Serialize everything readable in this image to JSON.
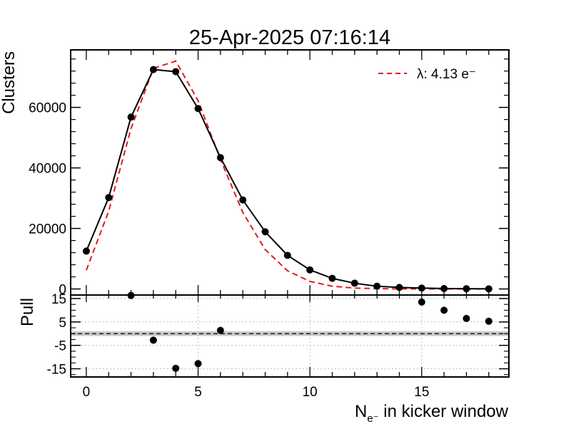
{
  "title": "25-Apr-2025 07:16:14",
  "chart_data": [
    {
      "type": "line",
      "panel": "main",
      "ylabel": "Clusters",
      "xlim": [
        -0.7,
        18.9
      ],
      "ylim": [
        -2000,
        79000
      ],
      "yticks": [
        0,
        20000,
        40000,
        60000
      ],
      "ytick_labels": [
        "0",
        "20000",
        "40000",
        "60000"
      ],
      "legend_position": "top-right",
      "series": [
        {
          "style": "data",
          "color": "#000000",
          "x": [
            0,
            1,
            2,
            3,
            4,
            5,
            6,
            7,
            8,
            9,
            10,
            11,
            12,
            13,
            14,
            15,
            16,
            17,
            18
          ],
          "values": [
            12500,
            30200,
            56800,
            72500,
            71800,
            59600,
            43400,
            29400,
            18900,
            11100,
            6300,
            3500,
            1900,
            900,
            500,
            300,
            150,
            80,
            40
          ]
        },
        {
          "name": "λ: 4.13 e⁻",
          "style": "fit",
          "color": "#e31a1c",
          "x": [
            0,
            1,
            2,
            3,
            4,
            5,
            6,
            7,
            8,
            9,
            10,
            11,
            12,
            13,
            14,
            15,
            16,
            17,
            18
          ],
          "values": [
            6200,
            25700,
            53000,
            72900,
            75300,
            62200,
            42800,
            25300,
            13000,
            6000,
            2500,
            900,
            300,
            100,
            30,
            10,
            3,
            1,
            0
          ]
        }
      ]
    },
    {
      "type": "scatter",
      "panel": "pull",
      "ylabel": "Pull",
      "xlabel": "N",
      "xlabel_sub": "e⁻",
      "xlabel_rest": " in kicker window",
      "xlim": [
        -0.7,
        18.9
      ],
      "ylim": [
        -18.5,
        16.5
      ],
      "yticks": [
        15,
        5,
        -5,
        -15
      ],
      "ytick_labels": [
        "15",
        "5",
        "-5",
        "-15"
      ],
      "xticks": [
        0,
        5,
        10,
        15
      ],
      "xtick_labels": [
        "0",
        "5",
        "10",
        "15"
      ],
      "band": [
        -1,
        1
      ],
      "reference_line": 0,
      "series": [
        {
          "color": "#000000",
          "x": [
            2,
            3,
            4,
            5,
            6,
            15,
            16,
            17,
            18
          ],
          "values": [
            16.3,
            -2.8,
            -14.8,
            -12.8,
            1.4,
            13.5,
            10.0,
            6.5,
            5.3
          ]
        }
      ]
    }
  ]
}
